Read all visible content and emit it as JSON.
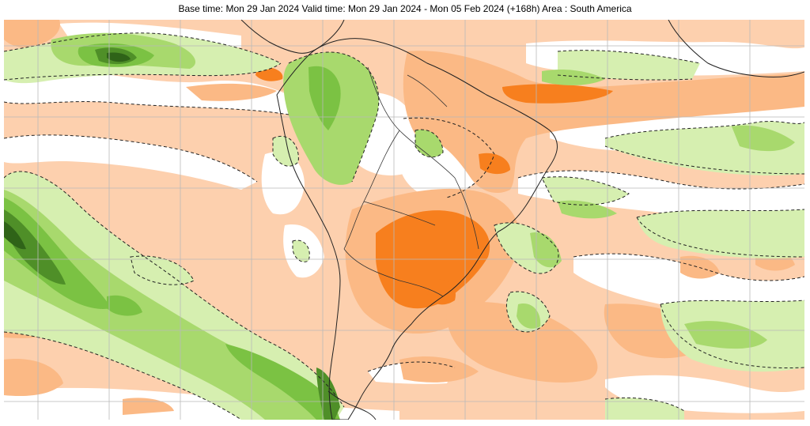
{
  "title": "Base time: Mon 29 Jan 2024 Valid time: Mon 29 Jan 2024 - Mon 05 Feb 2024 (+168h) Area : South America",
  "map": {
    "colors": {
      "strong_dry": "#f77f1e",
      "moderate_dry": "#fbb985",
      "weak_dry": "#fdd0ae",
      "neutral": "#ffffff",
      "weak_wet": "#d6efb0",
      "moderate_wet": "#a8d96d",
      "strong_wet": "#7bc243",
      "very_strong_wet": "#4f8f28",
      "extreme_wet": "#2f6318",
      "coastline": "#222222",
      "gridline": "#b9b9b9",
      "contour": "#222222"
    }
  }
}
